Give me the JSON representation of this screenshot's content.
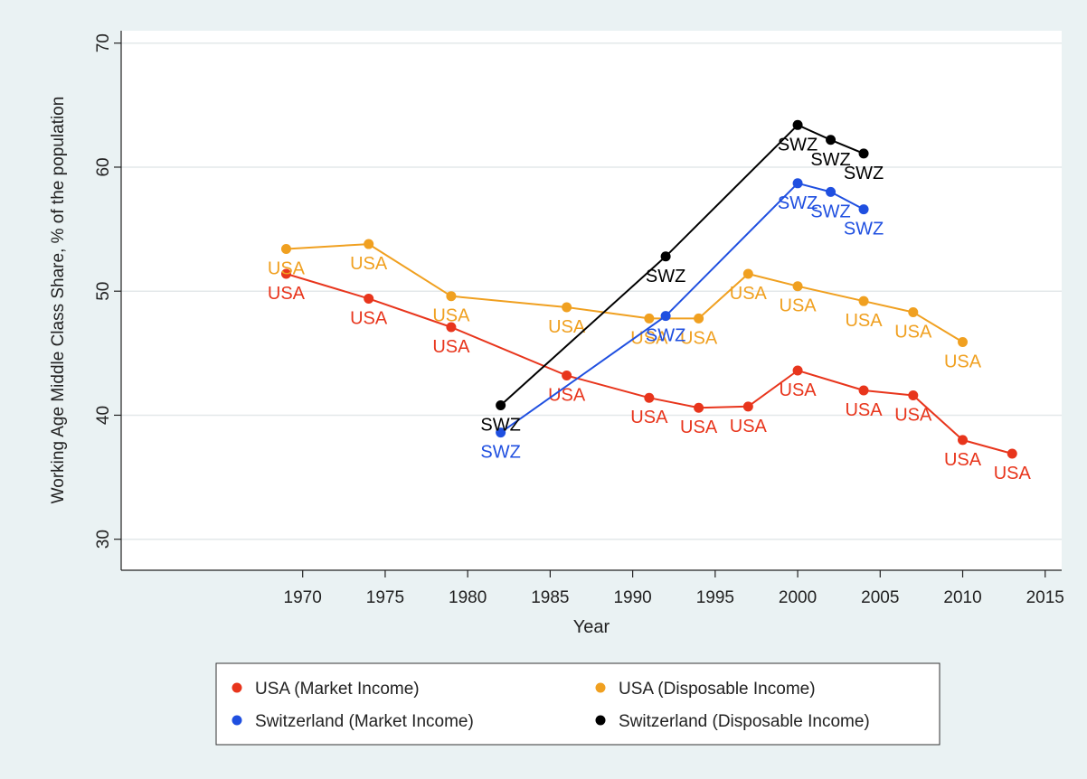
{
  "chart_data": {
    "type": "line",
    "title": "",
    "xlabel": "Year",
    "ylabel": "Working Age Middle Class Share, % of the population",
    "xlim": [
      1959,
      2016
    ],
    "ylim": [
      27.5,
      71
    ],
    "x_ticks": [
      1970,
      1975,
      1980,
      1985,
      1990,
      1995,
      2000,
      2005,
      2010,
      2015
    ],
    "y_ticks": [
      30,
      40,
      50,
      60,
      70
    ],
    "grid": "horizontal",
    "legend_position": "bottom",
    "series": [
      {
        "name": "USA (Market Income)",
        "color": "#e8351c",
        "point_label": "USA",
        "x": [
          1969,
          1974,
          1979,
          1986,
          1991,
          1994,
          1997,
          2000,
          2004,
          2007,
          2010,
          2013
        ],
        "y": [
          51.4,
          49.4,
          47.1,
          43.2,
          41.4,
          40.6,
          40.7,
          43.6,
          42.0,
          41.6,
          38.0,
          36.9
        ]
      },
      {
        "name": "USA (Disposable Income)",
        "color": "#f0a020",
        "point_label": "USA",
        "x": [
          1969,
          1974,
          1979,
          1986,
          1991,
          1994,
          1997,
          2000,
          2004,
          2007,
          2010
        ],
        "y": [
          53.4,
          53.8,
          49.6,
          48.7,
          47.8,
          47.8,
          51.4,
          50.4,
          49.2,
          48.3,
          45.9
        ]
      },
      {
        "name": "Switzerland (Market Income)",
        "color": "#1f4fe0",
        "point_label": "SWZ",
        "x": [
          1982,
          1992,
          2000,
          2002,
          2004
        ],
        "y": [
          38.6,
          48.0,
          58.7,
          58.0,
          56.6
        ]
      },
      {
        "name": "Switzerland (Disposable Income)",
        "color": "#000000",
        "point_label": "SWZ",
        "x": [
          1982,
          1992,
          2000,
          2002,
          2004
        ],
        "y": [
          40.8,
          52.8,
          63.4,
          62.2,
          61.1
        ]
      }
    ]
  }
}
